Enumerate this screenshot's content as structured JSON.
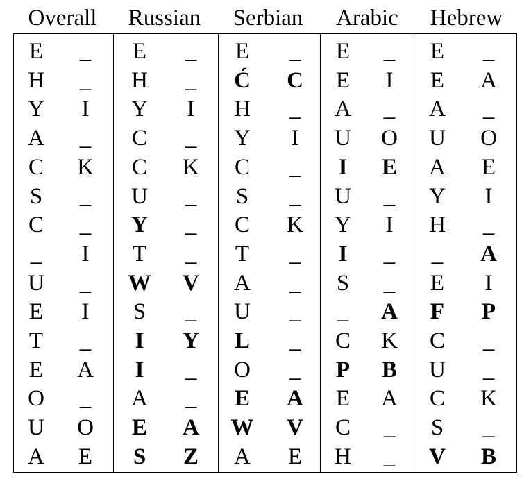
{
  "columns": [
    {
      "name": "Overall",
      "rows": [
        [
          {
            "t": "E",
            "b": false
          },
          {
            "t": "_",
            "b": false
          }
        ],
        [
          {
            "t": "H",
            "b": false
          },
          {
            "t": "_",
            "b": false
          }
        ],
        [
          {
            "t": "Y",
            "b": false
          },
          {
            "t": "I",
            "b": false
          }
        ],
        [
          {
            "t": "A",
            "b": false
          },
          {
            "t": "_",
            "b": false
          }
        ],
        [
          {
            "t": "C",
            "b": false
          },
          {
            "t": "K",
            "b": false
          }
        ],
        [
          {
            "t": "S",
            "b": false
          },
          {
            "t": "_",
            "b": false
          }
        ],
        [
          {
            "t": "C",
            "b": false
          },
          {
            "t": "_",
            "b": false
          }
        ],
        [
          {
            "t": "_",
            "b": false
          },
          {
            "t": "I",
            "b": false
          }
        ],
        [
          {
            "t": "U",
            "b": false
          },
          {
            "t": "_",
            "b": false
          }
        ],
        [
          {
            "t": "E",
            "b": false
          },
          {
            "t": "I",
            "b": false
          }
        ],
        [
          {
            "t": "T",
            "b": false
          },
          {
            "t": "_",
            "b": false
          }
        ],
        [
          {
            "t": "E",
            "b": false
          },
          {
            "t": "A",
            "b": false
          }
        ],
        [
          {
            "t": "O",
            "b": false
          },
          {
            "t": "_",
            "b": false
          }
        ],
        [
          {
            "t": "U",
            "b": false
          },
          {
            "t": "O",
            "b": false
          }
        ],
        [
          {
            "t": "A",
            "b": false
          },
          {
            "t": "E",
            "b": false
          }
        ]
      ]
    },
    {
      "name": "Russian",
      "rows": [
        [
          {
            "t": "E",
            "b": false
          },
          {
            "t": "_",
            "b": false
          }
        ],
        [
          {
            "t": "H",
            "b": false
          },
          {
            "t": "_",
            "b": false
          }
        ],
        [
          {
            "t": "Y",
            "b": false
          },
          {
            "t": "I",
            "b": false
          }
        ],
        [
          {
            "t": "C",
            "b": false
          },
          {
            "t": "_",
            "b": false
          }
        ],
        [
          {
            "t": "C",
            "b": false
          },
          {
            "t": "K",
            "b": false
          }
        ],
        [
          {
            "t": "U",
            "b": false
          },
          {
            "t": "_",
            "b": false
          }
        ],
        [
          {
            "t": "Y",
            "b": true
          },
          {
            "t": "_",
            "b": false
          }
        ],
        [
          {
            "t": "T",
            "b": false
          },
          {
            "t": "_",
            "b": false
          }
        ],
        [
          {
            "t": "W",
            "b": true
          },
          {
            "t": "V",
            "b": true
          }
        ],
        [
          {
            "t": "S",
            "b": false
          },
          {
            "t": "_",
            "b": false
          }
        ],
        [
          {
            "t": "I",
            "b": true
          },
          {
            "t": "Y",
            "b": true
          }
        ],
        [
          {
            "t": "I",
            "b": true
          },
          {
            "t": "_",
            "b": false
          }
        ],
        [
          {
            "t": "A",
            "b": false
          },
          {
            "t": "_",
            "b": false
          }
        ],
        [
          {
            "t": "E",
            "b": true
          },
          {
            "t": "A",
            "b": true
          }
        ],
        [
          {
            "t": "S",
            "b": true
          },
          {
            "t": "Z",
            "b": true
          }
        ]
      ]
    },
    {
      "name": "Serbian",
      "rows": [
        [
          {
            "t": "E",
            "b": false
          },
          {
            "t": "_",
            "b": false
          }
        ],
        [
          {
            "t": "Ć",
            "b": true
          },
          {
            "t": "C",
            "b": true
          }
        ],
        [
          {
            "t": "H",
            "b": false
          },
          {
            "t": "_",
            "b": false
          }
        ],
        [
          {
            "t": "Y",
            "b": false
          },
          {
            "t": "I",
            "b": false
          }
        ],
        [
          {
            "t": "C",
            "b": false
          },
          {
            "t": "_",
            "b": false
          }
        ],
        [
          {
            "t": "S",
            "b": false
          },
          {
            "t": "_",
            "b": false
          }
        ],
        [
          {
            "t": "C",
            "b": false
          },
          {
            "t": "K",
            "b": false
          }
        ],
        [
          {
            "t": "T",
            "b": false
          },
          {
            "t": "_",
            "b": false
          }
        ],
        [
          {
            "t": "A",
            "b": false
          },
          {
            "t": "_",
            "b": false
          }
        ],
        [
          {
            "t": "U",
            "b": false
          },
          {
            "t": "_",
            "b": false
          }
        ],
        [
          {
            "t": "L",
            "b": true
          },
          {
            "t": "_",
            "b": false
          }
        ],
        [
          {
            "t": "O",
            "b": false
          },
          {
            "t": "_",
            "b": false
          }
        ],
        [
          {
            "t": "E",
            "b": true
          },
          {
            "t": "A",
            "b": true
          }
        ],
        [
          {
            "t": "W",
            "b": true
          },
          {
            "t": "V",
            "b": true
          }
        ],
        [
          {
            "t": "A",
            "b": false
          },
          {
            "t": "E",
            "b": false
          }
        ]
      ]
    },
    {
      "name": "Arabic",
      "rows": [
        [
          {
            "t": "E",
            "b": false
          },
          {
            "t": "_",
            "b": false
          }
        ],
        [
          {
            "t": "E",
            "b": false
          },
          {
            "t": "I",
            "b": false
          }
        ],
        [
          {
            "t": "A",
            "b": false
          },
          {
            "t": "_",
            "b": false
          }
        ],
        [
          {
            "t": "U",
            "b": false
          },
          {
            "t": "O",
            "b": false
          }
        ],
        [
          {
            "t": "I",
            "b": true
          },
          {
            "t": "E",
            "b": true
          }
        ],
        [
          {
            "t": "U",
            "b": false
          },
          {
            "t": "_",
            "b": false
          }
        ],
        [
          {
            "t": "Y",
            "b": false
          },
          {
            "t": "I",
            "b": false
          }
        ],
        [
          {
            "t": "I",
            "b": true
          },
          {
            "t": "_",
            "b": false
          }
        ],
        [
          {
            "t": "S",
            "b": false
          },
          {
            "t": "_",
            "b": false
          }
        ],
        [
          {
            "t": "_",
            "b": false
          },
          {
            "t": "A",
            "b": true
          }
        ],
        [
          {
            "t": "C",
            "b": false
          },
          {
            "t": "K",
            "b": false
          }
        ],
        [
          {
            "t": "P",
            "b": true
          },
          {
            "t": "B",
            "b": true
          }
        ],
        [
          {
            "t": "E",
            "b": false
          },
          {
            "t": "A",
            "b": false
          }
        ],
        [
          {
            "t": "C",
            "b": false
          },
          {
            "t": "_",
            "b": false
          }
        ],
        [
          {
            "t": "H",
            "b": false
          },
          {
            "t": "_",
            "b": false
          }
        ]
      ]
    },
    {
      "name": "Hebrew",
      "rows": [
        [
          {
            "t": "E",
            "b": false
          },
          {
            "t": "_",
            "b": false
          }
        ],
        [
          {
            "t": "E",
            "b": false
          },
          {
            "t": "A",
            "b": false
          }
        ],
        [
          {
            "t": "A",
            "b": false
          },
          {
            "t": "_",
            "b": false
          }
        ],
        [
          {
            "t": "U",
            "b": false
          },
          {
            "t": "O",
            "b": false
          }
        ],
        [
          {
            "t": "A",
            "b": false
          },
          {
            "t": "E",
            "b": false
          }
        ],
        [
          {
            "t": "Y",
            "b": false
          },
          {
            "t": "I",
            "b": false
          }
        ],
        [
          {
            "t": "H",
            "b": false
          },
          {
            "t": "_",
            "b": false
          }
        ],
        [
          {
            "t": "_",
            "b": false
          },
          {
            "t": "A",
            "b": true
          }
        ],
        [
          {
            "t": "E",
            "b": false
          },
          {
            "t": "I",
            "b": false
          }
        ],
        [
          {
            "t": "F",
            "b": true
          },
          {
            "t": "P",
            "b": true
          }
        ],
        [
          {
            "t": "C",
            "b": false
          },
          {
            "t": "_",
            "b": false
          }
        ],
        [
          {
            "t": "U",
            "b": false
          },
          {
            "t": "_",
            "b": false
          }
        ],
        [
          {
            "t": "C",
            "b": false
          },
          {
            "t": "K",
            "b": false
          }
        ],
        [
          {
            "t": "S",
            "b": false
          },
          {
            "t": "_",
            "b": false
          }
        ],
        [
          {
            "t": "V",
            "b": true
          },
          {
            "t": "B",
            "b": true
          }
        ]
      ]
    }
  ]
}
